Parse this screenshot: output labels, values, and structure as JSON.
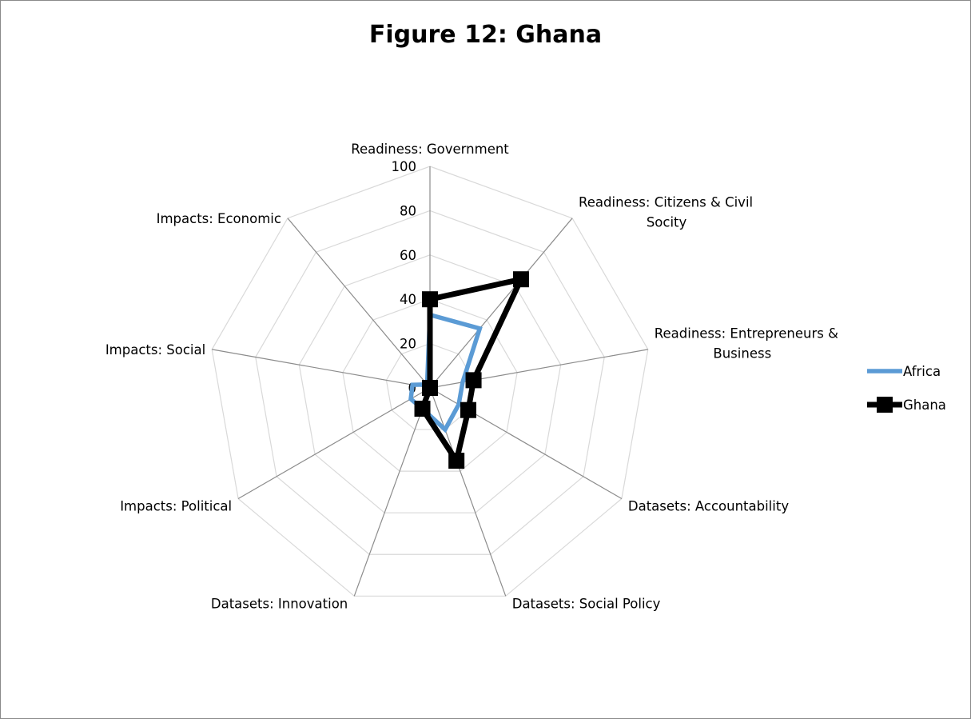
{
  "chart_data": {
    "type": "radar",
    "title": "Figure 12: Ghana",
    "categories": [
      "Readiness: Government",
      "Readiness: Citizens & Civil Socity",
      "Readiness: Entrepreneurs & Business",
      "Datasets: Accountability",
      "Datasets: Social Policy",
      "Datasets: Innovation",
      "Impacts: Political",
      "Impacts: Social",
      "Impacts: Economic"
    ],
    "category_lines": [
      [
        "Readiness: Government"
      ],
      [
        "Readiness: Citizens & Civil",
        "Socity"
      ],
      [
        "Readiness: Entrepreneurs &",
        "Business"
      ],
      [
        "Datasets: Accountability"
      ],
      [
        "Datasets: Social Policy"
      ],
      [
        "Datasets: Innovation"
      ],
      [
        "Impacts: Political"
      ],
      [
        "Impacts: Social"
      ],
      [
        "Impacts: Economic"
      ]
    ],
    "ticks": [
      0,
      20,
      40,
      60,
      80,
      100
    ],
    "rlim": [
      0,
      100
    ],
    "grid": true,
    "legend": "right",
    "series": [
      {
        "name": "Africa",
        "color": "#5B9BD5",
        "marker": "none",
        "values": [
          33,
          35,
          15,
          15,
          20,
          10,
          10,
          8,
          2
        ]
      },
      {
        "name": "Ghana",
        "color": "#000000",
        "marker": "square",
        "values": [
          40,
          64,
          20,
          20,
          35,
          10,
          0,
          0,
          0
        ]
      }
    ]
  }
}
